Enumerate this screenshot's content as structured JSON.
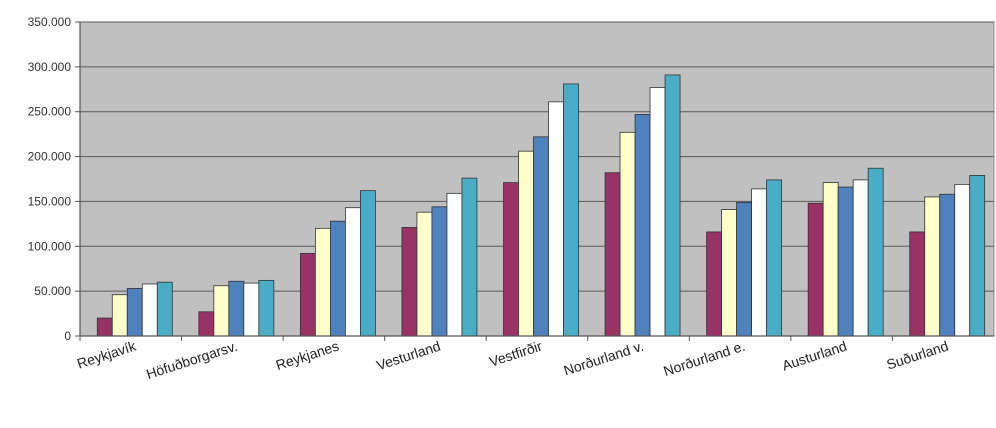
{
  "chart_data": {
    "type": "bar",
    "title": "",
    "xlabel": "",
    "ylabel": "",
    "ylim": [
      0,
      350000
    ],
    "yticks": [
      {
        "value": 0,
        "label": "0"
      },
      {
        "value": 50000,
        "label": "50.000"
      },
      {
        "value": 100000,
        "label": "100.000"
      },
      {
        "value": 150000,
        "label": "150.000"
      },
      {
        "value": 200000,
        "label": "200.000"
      },
      {
        "value": 250000,
        "label": "250.000"
      },
      {
        "value": 300000,
        "label": "300.000"
      },
      {
        "value": 350000,
        "label": "350.000"
      }
    ],
    "grid": true,
    "legend": "none",
    "plot_background": "#c0c0c0",
    "categories": [
      "Reykjavík",
      "Höfuðborgarsv.",
      "Reykjanes",
      "Vesturland",
      "Vestfirðir",
      "Norðurland v.",
      "Norðurland e.",
      "Austurland",
      "Suðurland"
    ],
    "series": [
      {
        "color": "#993366",
        "values": [
          20000,
          27000,
          92000,
          121000,
          171000,
          182000,
          116000,
          148000,
          116000
        ]
      },
      {
        "color": "#ffffcc",
        "values": [
          46000,
          56000,
          120000,
          138000,
          206000,
          227000,
          141000,
          171000,
          155000
        ]
      },
      {
        "color": "#4f81bd",
        "values": [
          53000,
          61000,
          128000,
          144000,
          222000,
          247000,
          149000,
          166000,
          158000
        ]
      },
      {
        "color": "#ffffff",
        "values": [
          58000,
          59000,
          143000,
          159000,
          261000,
          277000,
          164000,
          174000,
          169000
        ]
      },
      {
        "color": "#4bacc6",
        "values": [
          60000,
          62000,
          162000,
          176000,
          281000,
          291000,
          174000,
          187000,
          179000
        ]
      }
    ]
  }
}
